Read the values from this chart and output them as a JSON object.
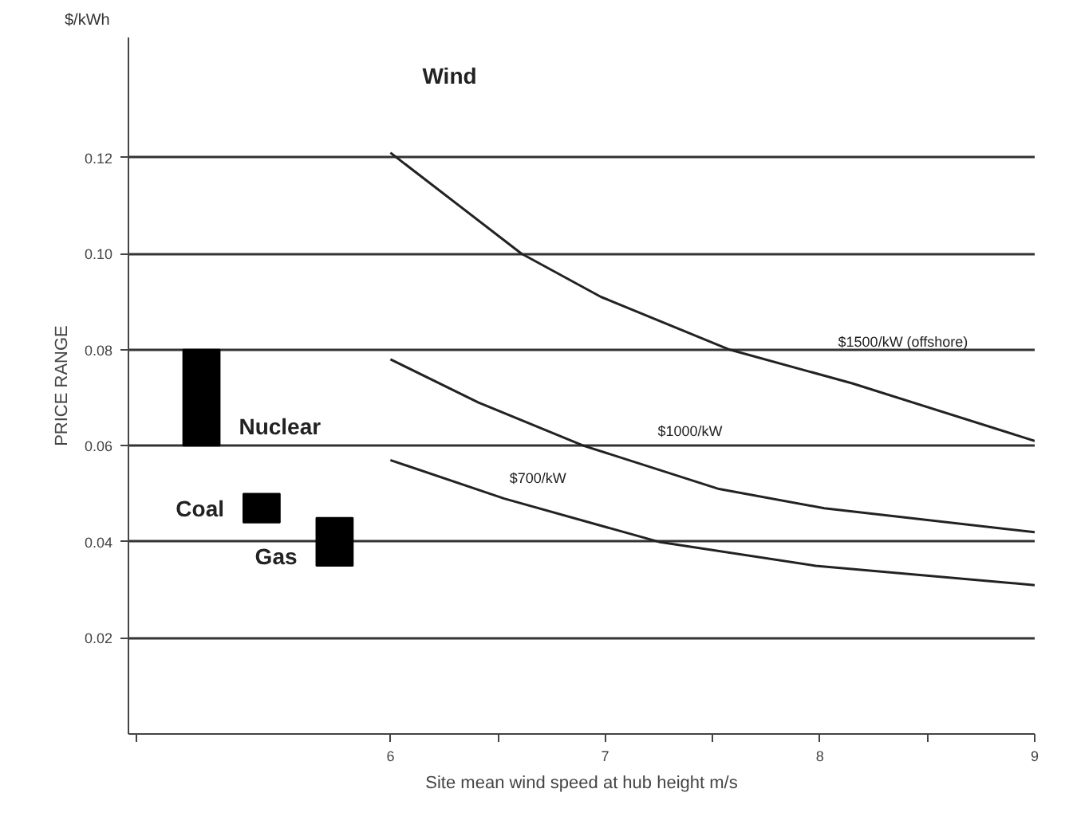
{
  "chart_data": {
    "type": "line",
    "xlabel": "Site mean wind speed at hub height m/s",
    "ylabel": "PRICE RANGE",
    "xlim": [
      4.78,
      9
    ],
    "ylim": [
      0,
      0.145
    ],
    "xticks": [
      {
        "value": 4.82,
        "label": null
      },
      6,
      {
        "value": 6.5,
        "label": null
      },
      7,
      {
        "value": 7.5,
        "label": null
      },
      8,
      {
        "value": 8.5,
        "label": null
      },
      9
    ],
    "yticks": [
      0.02,
      0.04,
      0.06,
      0.08,
      {
        "value": 0.1,
        "label": "0.10"
      },
      0.12
    ],
    "grid": "y",
    "line_style": "solid",
    "marker": "none",
    "series": [
      {
        "type": "bar",
        "name": "Nuclear",
        "color": "#000000",
        "x": [
          5.12
        ],
        "base": [
          0.06
        ],
        "values": [
          0.02
        ]
      },
      {
        "type": "bar",
        "name": "Coal",
        "color": "#000000",
        "x": [
          5.4
        ],
        "base": [
          0.044
        ],
        "values": [
          0.006
        ]
      },
      {
        "type": "bar",
        "name": "Gas",
        "color": "#000000",
        "x": [
          5.74
        ],
        "base": [
          0.035
        ],
        "values": [
          0.01
        ]
      },
      {
        "name": "$1500/kW (offshore)",
        "color": "#222222",
        "x": [
          6.0,
          6.61,
          6.98,
          7.58,
          8.15,
          9.0
        ],
        "values": [
          0.121,
          0.1,
          0.091,
          0.08,
          0.073,
          0.061
        ]
      },
      {
        "name": "$1000/kW",
        "color": "#222222",
        "x": [
          6.0,
          6.41,
          6.9,
          7.53,
          8.02,
          9.0
        ],
        "values": [
          0.078,
          0.069,
          0.06,
          0.051,
          0.047,
          0.042
        ]
      },
      {
        "name": "$700/kW",
        "color": "#222222",
        "x": [
          6.0,
          6.53,
          7.25,
          7.98,
          9.0
        ],
        "values": [
          0.057,
          0.049,
          0.04,
          0.035,
          0.031
        ]
      }
    ],
    "annotations": [
      "$/kWh",
      "Wind"
    ]
  }
}
